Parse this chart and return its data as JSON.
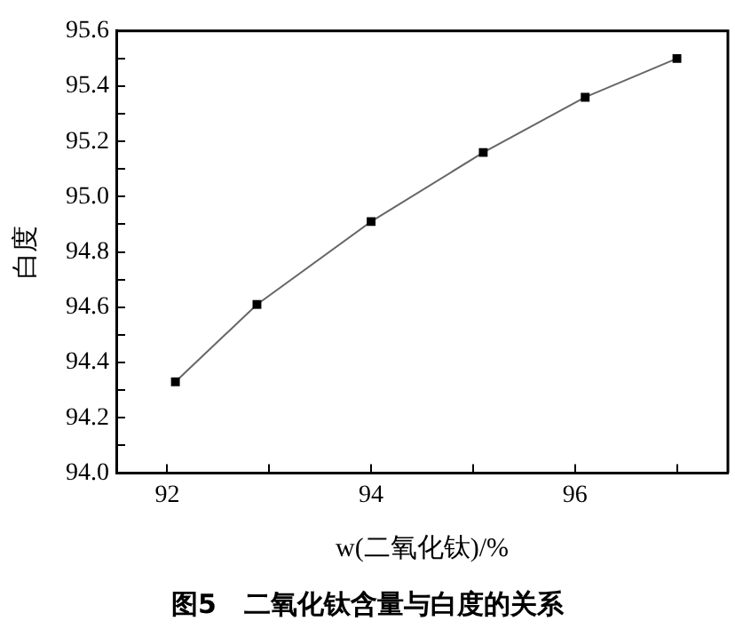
{
  "chart_data": {
    "type": "line",
    "title": "图5   二氧化钛含量与白度的关系",
    "xlabel": "w(二氧化钛)/%",
    "ylabel": "白度",
    "x": [
      92.08,
      92.88,
      94.0,
      95.1,
      96.1,
      97.0
    ],
    "series": [
      {
        "color": "#000000",
        "values": [
          94.33,
          94.61,
          94.91,
          95.16,
          95.36,
          95.5
        ]
      }
    ],
    "xlim": [
      91.5,
      97.5
    ],
    "xticks": [
      92,
      {
        "value": 93,
        "label": null
      },
      94,
      {
        "value": 95,
        "label": null
      },
      96,
      {
        "value": 97,
        "label": null
      }
    ],
    "ylim": [
      94.0,
      95.6
    ],
    "yticks": [
      {
        "value": 94,
        "label": "94.0"
      },
      {
        "value": 94.1,
        "label": null
      },
      94.2,
      {
        "value": 94.3,
        "label": null
      },
      94.4,
      {
        "value": 94.5,
        "label": null
      },
      94.6,
      {
        "value": 94.7,
        "label": null
      },
      94.8,
      {
        "value": 94.9,
        "label": null
      },
      {
        "value": 95,
        "label": "95.0"
      },
      {
        "value": 95.1,
        "label": null
      },
      95.2,
      {
        "value": 95.3,
        "label": null
      },
      95.4,
      {
        "value": 95.5,
        "label": null
      },
      {
        "value": 95.6,
        "label": "95.6"
      }
    ],
    "marker": "square",
    "line_style": "solid",
    "grid": false,
    "legend": false
  }
}
